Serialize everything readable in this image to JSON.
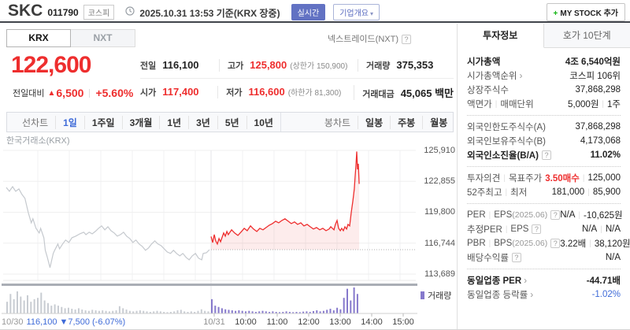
{
  "colors": {
    "up_red": "#ee2e2e",
    "link_blue": "#3f6bd8",
    "volume_purple": "#8679cc",
    "prev_line_gray": "#c5c9ce",
    "realtime_btn_blue": "#6272c3"
  },
  "header": {
    "symbol": "SKC",
    "code": "011790",
    "market_badge": "코스피",
    "datetime": "2025.10.31 13:53 기준(KRX 장중)",
    "realtime_button": "실시간",
    "company_overview_button": "기업개요",
    "caret": "▾",
    "mystock_plus": "+",
    "mystock_button": "MY STOCK 추가"
  },
  "market_tabs": {
    "krx": "KRX",
    "nxt": "NXT",
    "nxt_info": "넥스트레이드(NXT)",
    "help": "?"
  },
  "price": {
    "current": "122,600",
    "change_label": "전일대비",
    "change_arrow": "▲",
    "change_value": "6,500",
    "change_percent": "+5.60%"
  },
  "summary": {
    "rows": [
      [
        {
          "label": "전일",
          "value": "116,100"
        },
        {
          "label": "고가",
          "value": "125,800",
          "vc": "red",
          "note": "(상한가 150,900)"
        },
        {
          "label": "거래량",
          "value": "375,353"
        }
      ],
      [
        {
          "label": "시가",
          "value": "117,400",
          "vc": "red"
        },
        {
          "label": "저가",
          "value": "116,600",
          "vc": "red",
          "note": "(하한가 81,300)"
        },
        {
          "label": "거래대금",
          "value": "45,065 백만"
        }
      ]
    ]
  },
  "period_bar": {
    "left": [
      {
        "t": "선차트",
        "m": 1
      },
      {
        "t": "1일",
        "a": 1
      },
      {
        "t": "1주일"
      },
      {
        "t": "3개월"
      },
      {
        "t": "1년"
      },
      {
        "t": "3년"
      },
      {
        "t": "5년"
      },
      {
        "t": "10년"
      }
    ],
    "right": [
      {
        "t": "봉차트",
        "m": 1
      },
      {
        "t": "일봉"
      },
      {
        "t": "주봉"
      },
      {
        "t": "월봉"
      }
    ]
  },
  "chart_data": {
    "type": "line",
    "title": "한국거래소(KRX)",
    "legend": "거래량",
    "y_ticks": [
      {
        "label": "125,910",
        "price": 125910
      },
      {
        "label": "122,855",
        "price": 122855
      },
      {
        "label": "119,800",
        "price": 119800
      },
      {
        "label": "116,744",
        "price": 116744
      },
      {
        "label": "113,689",
        "price": 113689
      }
    ],
    "prev_close": 116100,
    "x_labels": [
      {
        "t": "10/31",
        "m": 1
      },
      {
        "t": "10:00"
      },
      {
        "t": "11:00"
      },
      {
        "t": "12:00"
      },
      {
        "t": "13:00"
      },
      {
        "t": "14:00"
      },
      {
        "t": "15:00"
      }
    ],
    "footer": {
      "date": "10/30",
      "text": "116,100 ▼7,500 (-6.07%)"
    },
    "series": [
      {
        "name": "10/30",
        "style": "gray",
        "points": [
          [
            0,
            122250
          ],
          [
            0.015,
            121870
          ],
          [
            0.031,
            122330
          ],
          [
            0.046,
            121870
          ],
          [
            0.062,
            122100
          ],
          [
            0.077,
            121560
          ],
          [
            0.092,
            121170
          ],
          [
            0.108,
            119770
          ],
          [
            0.123,
            118760
          ],
          [
            0.131,
            119150
          ],
          [
            0.146,
            118210
          ],
          [
            0.162,
            117750
          ],
          [
            0.169,
            118210
          ],
          [
            0.185,
            117280
          ],
          [
            0.192,
            116040
          ],
          [
            0.2,
            115490
          ],
          [
            0.208,
            114870
          ],
          [
            0.215,
            114330
          ],
          [
            0.231,
            115730
          ],
          [
            0.238,
            116040
          ],
          [
            0.254,
            116660
          ],
          [
            0.262,
            116190
          ],
          [
            0.277,
            116660
          ],
          [
            0.292,
            117050
          ],
          [
            0.308,
            116810
          ],
          [
            0.323,
            117280
          ],
          [
            0.342,
            117440
          ],
          [
            0.362,
            117670
          ],
          [
            0.381,
            117830
          ],
          [
            0.392,
            117590
          ],
          [
            0.408,
            117830
          ],
          [
            0.423,
            117670
          ],
          [
            0.438,
            117900
          ],
          [
            0.454,
            118210
          ],
          [
            0.469,
            118450
          ],
          [
            0.485,
            118060
          ],
          [
            0.5,
            118370
          ],
          [
            0.515,
            117980
          ],
          [
            0.531,
            117750
          ],
          [
            0.546,
            117440
          ],
          [
            0.562,
            117590
          ],
          [
            0.577,
            117830
          ],
          [
            0.592,
            117440
          ],
          [
            0.608,
            117200
          ],
          [
            0.623,
            116810
          ],
          [
            0.638,
            117050
          ],
          [
            0.654,
            116660
          ],
          [
            0.669,
            116430
          ],
          [
            0.685,
            116040
          ],
          [
            0.7,
            116270
          ],
          [
            0.715,
            116660
          ],
          [
            0.731,
            116970
          ],
          [
            0.746,
            116660
          ],
          [
            0.762,
            116500
          ],
          [
            0.777,
            116190
          ],
          [
            0.792,
            115880
          ],
          [
            0.808,
            115730
          ],
          [
            0.823,
            116040
          ],
          [
            0.838,
            115730
          ],
          [
            0.854,
            115490
          ],
          [
            0.869,
            115730
          ],
          [
            0.885,
            115340
          ],
          [
            0.9,
            115100
          ],
          [
            0.915,
            115490
          ],
          [
            0.931,
            115730
          ],
          [
            0.946,
            115260
          ],
          [
            0.962,
            115100
          ],
          [
            0.969,
            115730
          ],
          [
            0.985,
            115800
          ],
          [
            1,
            116100
          ]
        ]
      },
      {
        "name": "10/31",
        "style": "red",
        "points": [
          [
            0,
            117400
          ],
          [
            0.008,
            116810
          ],
          [
            0.016,
            117590
          ],
          [
            0.023,
            116970
          ],
          [
            0.031,
            116660
          ],
          [
            0.039,
            117200
          ],
          [
            0.047,
            116890
          ],
          [
            0.062,
            117750
          ],
          [
            0.07,
            117440
          ],
          [
            0.078,
            117900
          ],
          [
            0.085,
            117590
          ],
          [
            0.101,
            118060
          ],
          [
            0.116,
            117750
          ],
          [
            0.132,
            117510
          ],
          [
            0.147,
            117830
          ],
          [
            0.163,
            118210
          ],
          [
            0.178,
            117980
          ],
          [
            0.194,
            118450
          ],
          [
            0.209,
            118140
          ],
          [
            0.225,
            117900
          ],
          [
            0.24,
            118210
          ],
          [
            0.256,
            118060
          ],
          [
            0.271,
            118290
          ],
          [
            0.287,
            118520
          ],
          [
            0.302,
            118680
          ],
          [
            0.318,
            118910
          ],
          [
            0.333,
            118760
          ],
          [
            0.349,
            118990
          ],
          [
            0.364,
            119150
          ],
          [
            0.38,
            118910
          ],
          [
            0.395,
            118680
          ],
          [
            0.411,
            118840
          ],
          [
            0.426,
            118600
          ],
          [
            0.442,
            118760
          ],
          [
            0.457,
            118450
          ],
          [
            0.473,
            118600
          ],
          [
            0.488,
            118370
          ],
          [
            0.504,
            118140
          ],
          [
            0.519,
            118290
          ],
          [
            0.535,
            118060
          ],
          [
            0.55,
            118210
          ],
          [
            0.566,
            117980
          ],
          [
            0.581,
            118140
          ],
          [
            0.589,
            118370
          ],
          [
            0.605,
            118060
          ],
          [
            0.612,
            118600
          ],
          [
            0.62,
            118990
          ],
          [
            0.628,
            118210
          ],
          [
            0.636,
            117980
          ],
          [
            0.643,
            118210
          ],
          [
            0.651,
            117980
          ],
          [
            0.659,
            118370
          ],
          [
            0.667,
            118140
          ],
          [
            0.674,
            118600
          ],
          [
            0.682,
            118450
          ],
          [
            0.69,
            119770
          ],
          [
            0.698,
            120930
          ],
          [
            0.705,
            122100
          ],
          [
            0.709,
            123270
          ],
          [
            0.713,
            124430
          ],
          [
            0.717,
            125800
          ],
          [
            0.721,
            124040
          ],
          [
            0.725,
            124590
          ],
          [
            0.729,
            122600
          ]
        ]
      }
    ],
    "volume": {
      "prev": [
        0.45,
        0.75,
        0.55,
        0.85,
        0.65,
        0.5,
        0.7,
        0.45,
        0.55,
        0.6,
        0.8,
        0.5,
        0.4,
        0.3,
        0.35,
        0.3,
        0.25,
        0.2,
        0.22,
        0.18,
        0.15,
        0.2,
        0.15,
        0.12,
        0.1,
        0.14,
        0.12,
        0.1,
        0.12,
        0.1,
        0.08,
        0.1,
        0.12,
        0.28,
        0.2,
        0.15,
        0.1,
        0.08,
        0.1,
        0.12,
        0.1,
        0.08,
        0.06,
        0.08,
        0.1,
        0.08,
        0.06,
        0.05,
        0.06,
        0.08,
        0.12,
        0.14,
        0.08,
        0.06,
        0.08,
        0.06,
        0.1,
        0.16,
        0.1,
        0.08
      ],
      "curr": [
        0.55,
        0.3,
        0.25,
        0.2,
        0.16,
        0.14,
        0.12,
        0.1,
        0.12,
        0.1,
        0.08,
        0.1,
        0.08,
        0.06,
        0.08,
        0.1,
        0.08,
        0.06,
        0.08,
        0.06,
        0.05,
        0.06,
        0.08,
        0.06,
        0.05,
        0.06,
        0.05,
        0.07,
        0.08,
        0.06,
        0.09,
        0.12,
        0.08,
        0.1,
        0.14,
        0.18,
        0.12,
        0.22,
        0.16,
        0.6,
        0.95,
        0.5,
        1.0,
        0.75
      ]
    }
  },
  "sidebar": {
    "tab_invest": "투자정보",
    "tab_hoga": "호가 10단계",
    "rows": [
      {
        "label": [
          {
            "t": "시가총액",
            "b": 1
          }
        ],
        "value": [
          {
            "t": "4조 6,540억원",
            "b": 1
          }
        ]
      },
      {
        "label": [
          {
            "t": "시가총액순위"
          }
        ],
        "arrow": "›",
        "value": [
          {
            "t": "코스피 106위"
          }
        ]
      },
      {
        "label": [
          {
            "t": "상장주식수"
          }
        ],
        "value": [
          {
            "t": "37,868,298"
          }
        ]
      },
      {
        "label": [
          {
            "t": "액면가"
          },
          {
            "t": "매매단위"
          }
        ],
        "value": [
          {
            "t": "5,000원"
          },
          {
            "t": "1주"
          }
        ],
        "div": 1
      },
      {
        "label": [
          {
            "t": "외국인한도주식수(A)"
          }
        ],
        "value": [
          {
            "t": "37,868,298"
          }
        ]
      },
      {
        "label": [
          {
            "t": "외국인보유주식수(B)"
          }
        ],
        "value": [
          {
            "t": "4,173,068"
          }
        ]
      },
      {
        "label": [
          {
            "t": "외국인소진율(B/A)",
            "b": 1
          }
        ],
        "q": 1,
        "value": [
          {
            "t": "11.02%",
            "b": 1
          }
        ],
        "div": 1
      },
      {
        "label": [
          {
            "t": "투자의견"
          },
          {
            "t": "목표주가"
          }
        ],
        "value": [
          {
            "t": "3.50매수",
            "c": "red"
          },
          {
            "t": "125,000"
          }
        ]
      },
      {
        "label": [
          {
            "t": "52주최고"
          },
          {
            "t": "최저"
          }
        ],
        "value": [
          {
            "t": "181,000"
          },
          {
            "t": "85,900"
          }
        ],
        "div": 1
      },
      {
        "label": [
          {
            "t": "PER"
          },
          {
            "t": "EPS"
          },
          {
            "t": "(2025.06)",
            "m": 1,
            "ns": 1
          }
        ],
        "q": 1,
        "value": [
          {
            "t": "N/A"
          },
          {
            "t": "-10,625원"
          }
        ]
      },
      {
        "label": [
          {
            "t": "추정PER"
          },
          {
            "t": "EPS"
          }
        ],
        "q": 1,
        "value": [
          {
            "t": "N/A"
          },
          {
            "t": "N/A"
          }
        ]
      },
      {
        "label": [
          {
            "t": "PBR"
          },
          {
            "t": "BPS"
          },
          {
            "t": "(2025.06)",
            "m": 1,
            "ns": 1
          }
        ],
        "q": 1,
        "value": [
          {
            "t": "3.22배"
          },
          {
            "t": "38,120원"
          }
        ]
      },
      {
        "label": [
          {
            "t": "배당수익률"
          }
        ],
        "q": 1,
        "value": [
          {
            "t": "N/A"
          }
        ],
        "div": 1
      },
      {
        "label": [
          {
            "t": "동일업종 PER",
            "b": 1
          }
        ],
        "arrow": "›",
        "value": [
          {
            "t": "-44.71배",
            "b": 1
          }
        ]
      },
      {
        "label": [
          {
            "t": "동일업종 등락률"
          }
        ],
        "arrow": "›",
        "value": [
          {
            "t": "-1.02%",
            "c": "blue"
          }
        ]
      }
    ]
  }
}
